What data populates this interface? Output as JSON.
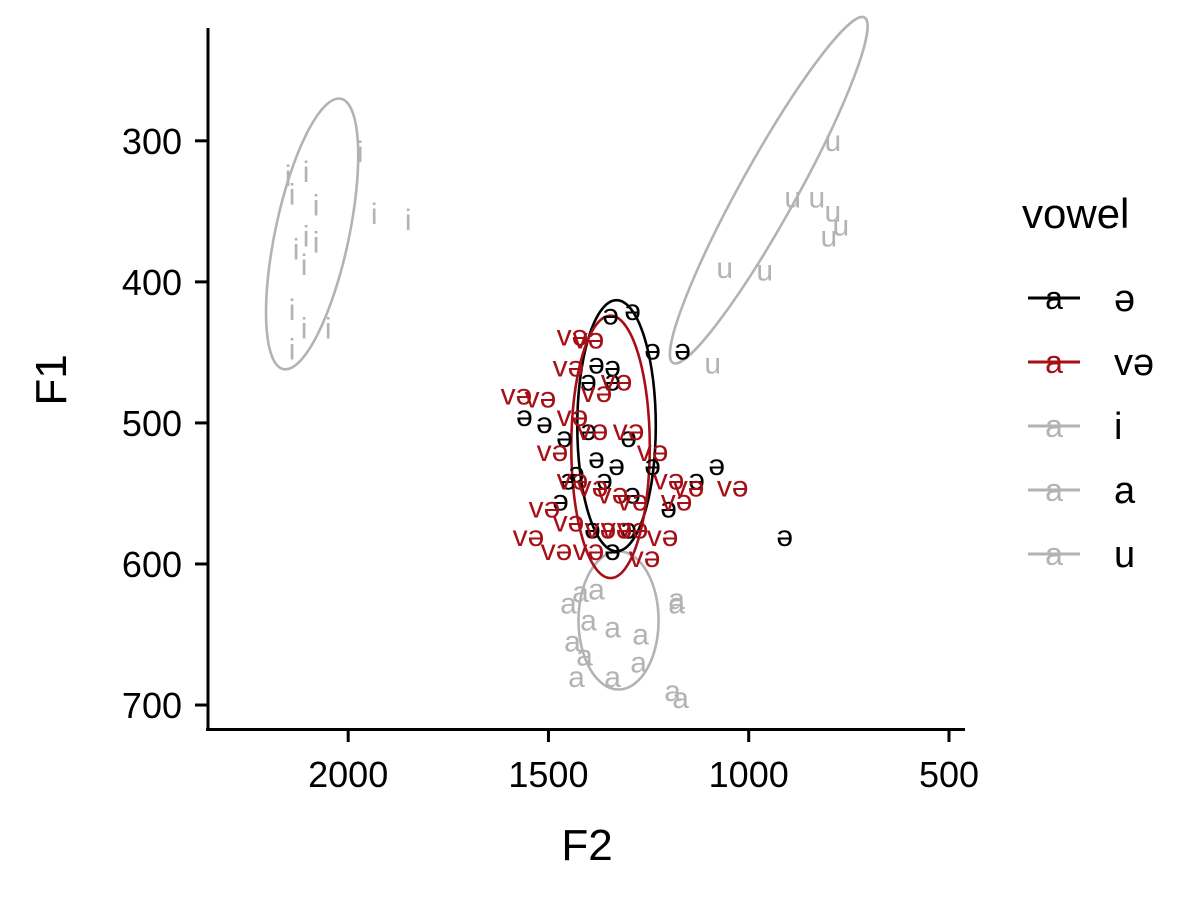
{
  "chart_data": {
    "type": "scatter",
    "xlabel": "F2",
    "ylabel": "F1",
    "x_reversed": true,
    "y_reversed": true,
    "xlim": [
      2350,
      460
    ],
    "ylim": [
      220,
      717
    ],
    "x_ticks": [
      2000,
      1500,
      1000,
      500
    ],
    "y_ticks": [
      300,
      400,
      500,
      600,
      700
    ],
    "grid": false,
    "legend": {
      "title": "vowel",
      "placement": "right",
      "key_glyph": "a",
      "entries": [
        {
          "label": "ə",
          "color": "#000000"
        },
        {
          "label": "və",
          "color": "#A50F15"
        },
        {
          "label": "i",
          "color": "#B3B3B3"
        },
        {
          "label": "a",
          "color": "#B3B3B3"
        },
        {
          "label": "u",
          "color": "#B3B3B3"
        }
      ]
    },
    "series": [
      {
        "label": "i",
        "color": "#B3B3B3",
        "ellipse": {
          "cx": 2090,
          "cy": 366,
          "rx": 92,
          "ry": 98,
          "angle": 12
        },
        "points": [
          [
            2150,
            325
          ],
          [
            2105,
            322
          ],
          [
            1970,
            308
          ],
          [
            2140,
            338
          ],
          [
            2080,
            346
          ],
          [
            1935,
            352
          ],
          [
            1850,
            356
          ],
          [
            2105,
            368
          ],
          [
            2080,
            372
          ],
          [
            2130,
            377
          ],
          [
            2110,
            388
          ],
          [
            2140,
            420
          ],
          [
            2110,
            433
          ],
          [
            2050,
            433
          ],
          [
            2140,
            448
          ]
        ]
      },
      {
        "label": "u",
        "color": "#B3B3B3",
        "ellipse": {
          "cx": 950,
          "cy": 335,
          "rx": 70,
          "ry": 140,
          "angle": 29
        },
        "points": [
          [
            790,
            300
          ],
          [
            890,
            340
          ],
          [
            830,
            340
          ],
          [
            790,
            350
          ],
          [
            770,
            360
          ],
          [
            800,
            368
          ],
          [
            1060,
            390
          ],
          [
            960,
            392
          ],
          [
            1090,
            458
          ]
        ]
      },
      {
        "label": "a",
        "color": "#B3B3B3",
        "ellipse": {
          "cx": 1325,
          "cy": 640,
          "rx": 100,
          "ry": 49,
          "angle": 0
        },
        "points": [
          [
            1420,
            620
          ],
          [
            1380,
            618
          ],
          [
            1450,
            628
          ],
          [
            1180,
            628
          ],
          [
            1400,
            640
          ],
          [
            1340,
            645
          ],
          [
            1270,
            650
          ],
          [
            1180,
            625
          ],
          [
            1440,
            655
          ],
          [
            1410,
            665
          ],
          [
            1275,
            670
          ],
          [
            1340,
            680
          ],
          [
            1190,
            690
          ],
          [
            1170,
            695
          ],
          [
            1430,
            680
          ]
        ]
      },
      {
        "label": "ə",
        "color": "#000000",
        "ellipse": {
          "cx": 1330,
          "cy": 502,
          "rx": 98,
          "ry": 89,
          "angle": 0
        },
        "points": [
          [
            1345,
            423
          ],
          [
            1290,
            420
          ],
          [
            1240,
            448
          ],
          [
            1165,
            448
          ],
          [
            1380,
            458
          ],
          [
            1340,
            460
          ],
          [
            1400,
            470
          ],
          [
            1340,
            470
          ],
          [
            1560,
            495
          ],
          [
            1510,
            500
          ],
          [
            1460,
            510
          ],
          [
            1300,
            510
          ],
          [
            1380,
            525
          ],
          [
            1330,
            530
          ],
          [
            1430,
            535
          ],
          [
            1360,
            540
          ],
          [
            1240,
            530
          ],
          [
            1080,
            530
          ],
          [
            1290,
            550
          ],
          [
            1200,
            560
          ],
          [
            1470,
            555
          ],
          [
            1390,
            575
          ],
          [
            1340,
            590
          ],
          [
            910,
            580
          ],
          [
            1130,
            540
          ],
          [
            1400,
            505
          ],
          [
            1450,
            540
          ],
          [
            1300,
            575
          ]
        ]
      },
      {
        "label": "və",
        "color": "#A50F15",
        "ellipse": {
          "cx": 1345,
          "cy": 517,
          "rx": 98,
          "ry": 93,
          "angle": 0
        },
        "points": [
          [
            1440,
            438
          ],
          [
            1400,
            440
          ],
          [
            1450,
            460
          ],
          [
            1380,
            478
          ],
          [
            1330,
            470
          ],
          [
            1580,
            480
          ],
          [
            1520,
            482
          ],
          [
            1440,
            495
          ],
          [
            1390,
            505
          ],
          [
            1300,
            505
          ],
          [
            1240,
            520
          ],
          [
            1490,
            520
          ],
          [
            1440,
            540
          ],
          [
            1390,
            545
          ],
          [
            1340,
            550
          ],
          [
            1290,
            555
          ],
          [
            1200,
            540
          ],
          [
            1150,
            545
          ],
          [
            1040,
            545
          ],
          [
            1510,
            560
          ],
          [
            1450,
            570
          ],
          [
            1370,
            575
          ],
          [
            1290,
            575
          ],
          [
            1215,
            580
          ],
          [
            1550,
            580
          ],
          [
            1480,
            590
          ],
          [
            1400,
            590
          ],
          [
            1330,
            575
          ],
          [
            1180,
            555
          ],
          [
            1260,
            595
          ]
        ]
      }
    ]
  }
}
